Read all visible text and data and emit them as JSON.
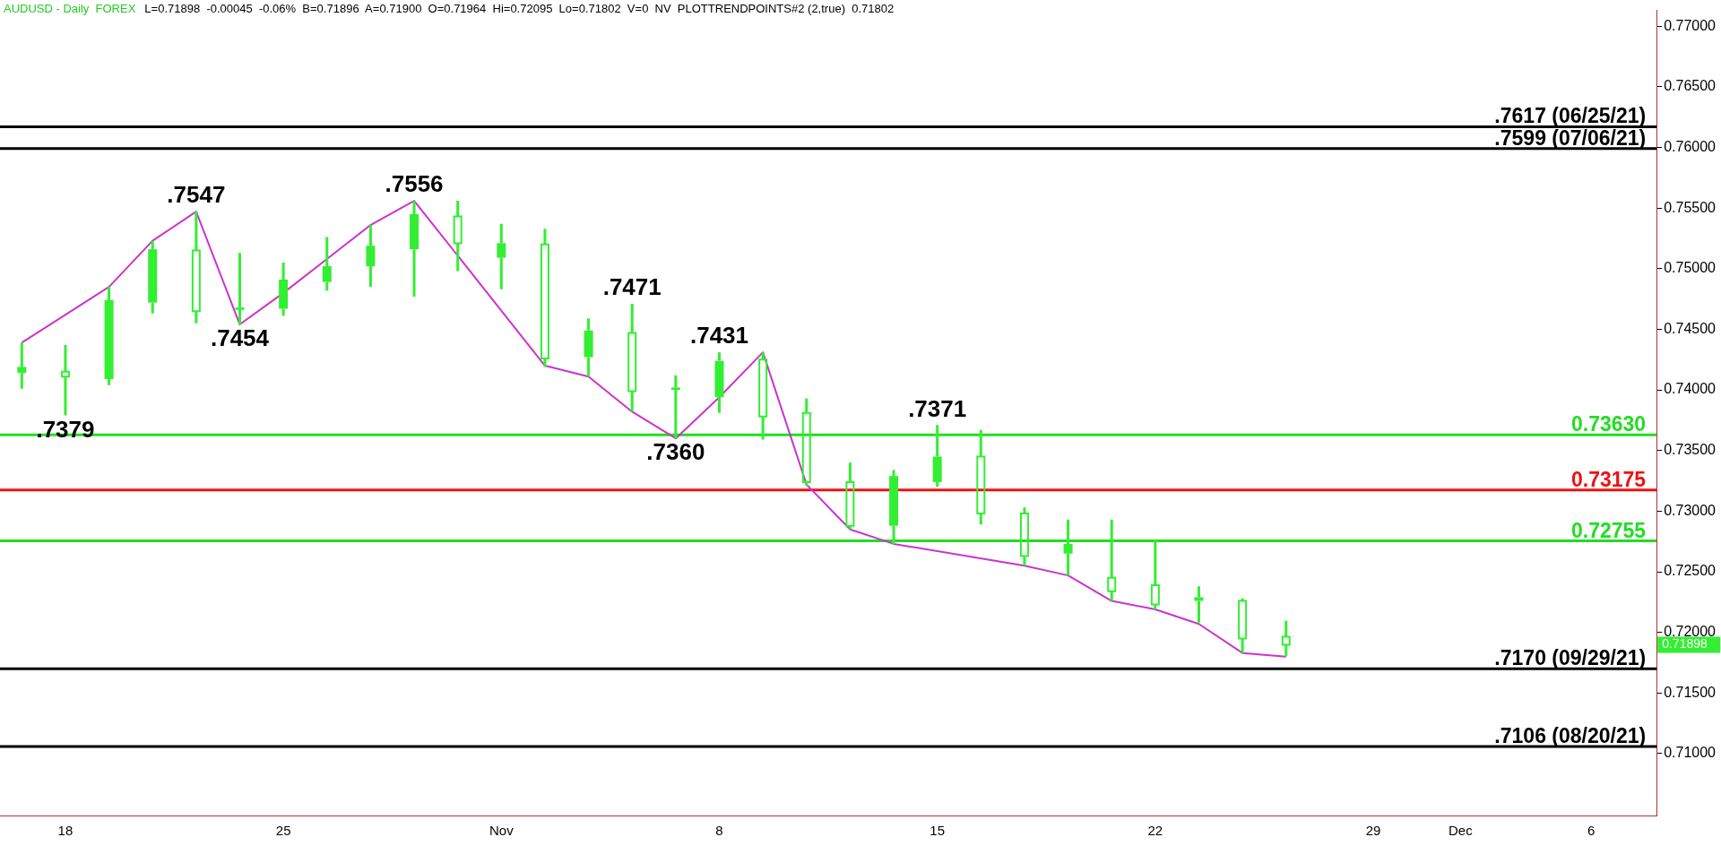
{
  "chart_data": {
    "type": "candlestick",
    "title": "AUDUSD - Daily  FOREX",
    "subtitle": "L=0.71898  -0.00045  -0.06%  B=0.71896  A=0.71900  O=0.71964  Hi=0.72095  Lo=0.71802  V=0  NV  PLOTTRENDPOINTS#2 (2,true)  0.71802",
    "categories": [
      null,
      "18",
      null,
      null,
      null,
      null,
      "25",
      null,
      null,
      null,
      null,
      "Nov",
      null,
      null,
      null,
      null,
      "8",
      null,
      null,
      null,
      null,
      "15",
      null,
      null,
      null,
      null,
      "22",
      null,
      null,
      null,
      null,
      "29",
      null,
      "Dec",
      null,
      null,
      "6",
      null
    ],
    "series": [
      {
        "type": "candlestick",
        "color": "#33ee33",
        "ohlc": [
          [
            0.7414,
            0.7439,
            0.7401,
            0.7419
          ],
          [
            0.7415,
            0.7437,
            0.7379,
            0.7411
          ],
          [
            0.7409,
            0.7485,
            0.7404,
            0.7474
          ],
          [
            0.7472,
            0.7523,
            0.7463,
            0.7516
          ],
          [
            0.7515,
            0.7547,
            0.7455,
            0.7465
          ],
          [
            0.7466,
            0.7513,
            0.7454,
            0.7468
          ],
          [
            0.7467,
            0.7505,
            0.7461,
            0.7491
          ],
          [
            0.7489,
            0.7526,
            0.7482,
            0.7502
          ],
          [
            0.7502,
            0.7536,
            0.7485,
            0.7519
          ],
          [
            0.7516,
            0.7556,
            0.7477,
            0.7545
          ],
          [
            0.7543,
            0.7556,
            0.7498,
            0.7521
          ],
          [
            0.7509,
            0.7537,
            0.7483,
            0.7521
          ],
          [
            0.752,
            0.7533,
            0.7419,
            0.7426
          ],
          [
            0.7427,
            0.7459,
            0.7411,
            0.7449
          ],
          [
            0.7447,
            0.7471,
            0.7382,
            0.7399
          ],
          [
            0.74,
            0.7412,
            0.736,
            0.7402
          ],
          [
            0.7394,
            0.7431,
            0.7381,
            0.7424
          ],
          [
            0.7425,
            0.7431,
            0.7359,
            0.7378
          ],
          [
            0.7381,
            0.7393,
            0.7321,
            0.7324
          ],
          [
            0.7324,
            0.734,
            0.7285,
            0.7288
          ],
          [
            0.7288,
            0.7334,
            0.7273,
            0.7329
          ],
          [
            0.7324,
            0.7371,
            0.732,
            0.7345
          ],
          [
            0.7345,
            0.7367,
            0.7289,
            0.7298
          ],
          [
            0.7298,
            0.7303,
            0.7255,
            0.7263
          ],
          [
            0.7265,
            0.7293,
            0.7247,
            0.7273
          ],
          [
            0.7245,
            0.7293,
            0.7226,
            0.7234
          ],
          [
            0.7239,
            0.7276,
            0.7219,
            0.7223
          ],
          [
            0.7226,
            0.7238,
            0.7208,
            0.7229
          ],
          [
            0.7226,
            0.7228,
            0.7183,
            0.7195
          ],
          [
            0.71964,
            0.72095,
            0.71802,
            0.71898
          ],
          null,
          null,
          null,
          null,
          null,
          null,
          null,
          null
        ]
      },
      {
        "type": "line",
        "color": "#cc33cc",
        "values": [
          0.7439,
          null,
          0.7485,
          0.7523,
          0.7547,
          0.7454,
          0.748,
          0.7508,
          0.7536,
          0.7556,
          null,
          null,
          0.742,
          0.7411,
          0.7382,
          0.736,
          0.7394,
          0.7431,
          0.7322,
          0.7285,
          0.7273,
          null,
          null,
          0.7255,
          0.7247,
          0.7226,
          0.7219,
          0.7207,
          0.7183,
          0.718,
          null,
          null,
          null,
          null,
          null,
          null,
          null,
          null
        ]
      }
    ],
    "ylim": [
      0.7049,
      0.7713
    ],
    "yticks": [
      {
        "value": 0.71,
        "label": "0.71000"
      },
      {
        "value": 0.715,
        "label": "0.71500"
      },
      {
        "value": 0.72,
        "label": "0.72000"
      },
      {
        "value": 0.725,
        "label": "0.72500"
      },
      {
        "value": 0.73,
        "label": "0.73000"
      },
      {
        "value": 0.735,
        "label": "0.73500"
      },
      {
        "value": 0.74,
        "label": "0.74000"
      },
      {
        "value": 0.745,
        "label": "0.74500"
      },
      {
        "value": 0.75,
        "label": "0.75000"
      },
      {
        "value": 0.755,
        "label": "0.75500"
      },
      {
        "value": 0.76,
        "label": "0.76000"
      },
      {
        "value": 0.765,
        "label": "0.76500"
      },
      {
        "value": 0.77,
        "label": "0.77000"
      }
    ],
    "ref_lines": [
      {
        "axis": "y",
        "value": 0.7617,
        "label": ".7617 (06/25/21)",
        "color": "#000000"
      },
      {
        "axis": "y",
        "value": 0.7599,
        "label": ".7599 (07/06/21)",
        "color": "#000000"
      },
      {
        "axis": "y",
        "value": 0.7363,
        "label": "0.73630",
        "color": "#22dd22"
      },
      {
        "axis": "y",
        "value": 0.73175,
        "label": "0.73175",
        "color": "#ee1111"
      },
      {
        "axis": "y",
        "value": 0.72755,
        "label": "0.72755",
        "color": "#22dd22"
      },
      {
        "axis": "y",
        "value": 0.717,
        "label": ".7170 (09/29/21)",
        "color": "#000000"
      },
      {
        "axis": "y",
        "value": 0.7106,
        "label": ".7106 (08/20/21)",
        "color": "#000000"
      }
    ],
    "annotations": [
      {
        "text": ".7379",
        "x": "18",
        "y": 0.7379
      },
      {
        "text": ".7547",
        "y": 0.7547
      },
      {
        "text": ".7454",
        "y": 0.7454
      },
      {
        "text": ".7556",
        "y": 0.7556
      },
      {
        "text": ".7471",
        "y": 0.7471
      },
      {
        "text": ".7360",
        "y": 0.736
      },
      {
        "text": ".7431",
        "y": 0.7431
      },
      {
        "text": ".7371",
        "x": "15",
        "y": 0.7371
      },
      "0.71898"
    ],
    "grid": false,
    "legend": false,
    "marker": "none"
  }
}
